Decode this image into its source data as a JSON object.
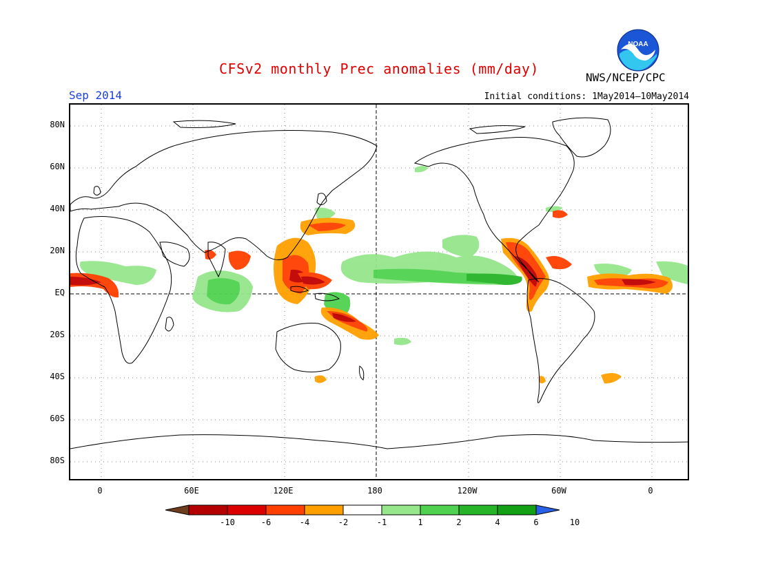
{
  "title": "CFSv2 monthly Prec anomalies (mm/day)",
  "valid_month": "Sep 2014",
  "initial_conditions": "Initial conditions: 1May2014—10May2014",
  "agency": "NWS/NCEP/CPC",
  "logo_text": "NOAA",
  "map": {
    "lat_labels": [
      "80N",
      "60N",
      "40N",
      "20N",
      "EQ",
      "20S",
      "40S",
      "60S",
      "80S"
    ],
    "lon_labels": [
      "0",
      "60E",
      "120E",
      "180",
      "120W",
      "60W",
      "0"
    ],
    "colors": {
      "land_outline": "#000000",
      "grid": "#7f7f7f",
      "dry_strong": "#c00000",
      "dry_medium": "#ff4000",
      "dry_weak": "#ffa000",
      "wet_weak": "#96e68c",
      "wet_medium": "#50d250",
      "wet_strong": "#1eb41e"
    }
  },
  "colorbar": {
    "labels": [
      "-10",
      "-6",
      "-4",
      "-2",
      "-1",
      "1",
      "2",
      "4",
      "6",
      "10"
    ],
    "colors": [
      "#6e3c1e",
      "#b40000",
      "#dc0000",
      "#ff4000",
      "#ffa000",
      "#ffffff",
      "#96e68c",
      "#50d250",
      "#28b428",
      "#14a014",
      "#2860e6"
    ]
  }
}
